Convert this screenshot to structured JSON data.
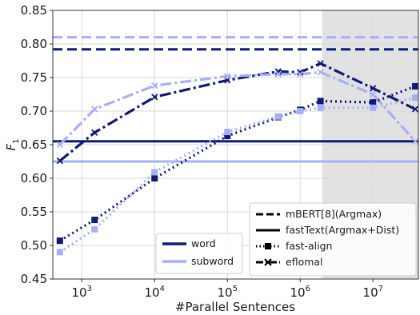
{
  "chart_data": {
    "type": "line",
    "x_scale": "log",
    "xlabel": "#Parallel Sentences",
    "ylabel": "F",
    "ylabel_subscript": "1",
    "xlim": [
      400,
      42000000
    ],
    "ylim": [
      0.45,
      0.85
    ],
    "y_ticks": [
      0.45,
      0.5,
      0.55,
      0.6,
      0.65,
      0.7,
      0.75,
      0.8,
      0.85
    ],
    "y_tick_labels": [
      "0.45",
      "0.50",
      "0.55",
      "0.60",
      "0.65",
      "0.70",
      "0.75",
      "0.80",
      "0.85"
    ],
    "x_ticks": [
      {
        "value": 1000,
        "base": "10",
        "exp": "3"
      },
      {
        "value": 10000,
        "base": "10",
        "exp": "4"
      },
      {
        "value": 100000,
        "base": "10",
        "exp": "5"
      },
      {
        "value": 1000000,
        "base": "10",
        "exp": "6"
      },
      {
        "value": 10000000,
        "base": "10",
        "exp": "7"
      }
    ],
    "grid": true,
    "shaded_region": {
      "x_from": 2000000,
      "x_to": 42000000
    },
    "colors": {
      "word": "#0d1a7a",
      "subword": "#a6b0f5",
      "shade": "#e2e2e2",
      "grid": "#d9d9d9"
    },
    "reference_lines": [
      {
        "method": "mBERT[8](Argmax)",
        "granularity": "word",
        "y": 0.792
      },
      {
        "method": "mBERT[8](Argmax)",
        "granularity": "subword",
        "y": 0.81
      },
      {
        "method": "fastText(Argmax+Dist)",
        "granularity": "word",
        "y": 0.655
      },
      {
        "method": "fastText(Argmax+Dist)",
        "granularity": "subword",
        "y": 0.625
      }
    ],
    "series": [
      {
        "method": "eflomal",
        "granularity": "word",
        "x": [
          500,
          1500,
          10000,
          100000,
          500000,
          1000000,
          1900000,
          10000000,
          38000000
        ],
        "y": [
          0.626,
          0.668,
          0.721,
          0.746,
          0.759,
          0.758,
          0.771,
          0.734,
          0.703
        ]
      },
      {
        "method": "eflomal",
        "granularity": "subword",
        "x": [
          500,
          1500,
          10000,
          100000,
          500000,
          1000000,
          1900000,
          10000000,
          38000000
        ],
        "y": [
          0.65,
          0.703,
          0.738,
          0.752,
          0.755,
          0.755,
          0.758,
          0.725,
          0.655
        ]
      },
      {
        "method": "fast-align",
        "granularity": "word",
        "x": [
          500,
          1500,
          10000,
          100000,
          500000,
          1000000,
          1900000,
          10000000,
          38000000
        ],
        "y": [
          0.507,
          0.538,
          0.6,
          0.663,
          0.691,
          0.702,
          0.715,
          0.713,
          0.737
        ]
      },
      {
        "method": "fast-align",
        "granularity": "subword",
        "x": [
          500,
          1500,
          10000,
          100000,
          500000,
          1000000,
          1900000,
          10000000,
          38000000
        ],
        "y": [
          0.49,
          0.524,
          0.609,
          0.669,
          0.692,
          0.7,
          0.705,
          0.705,
          0.72
        ]
      }
    ],
    "legend_granularity": {
      "placement": "lower-center",
      "entries": [
        "word",
        "subword"
      ]
    },
    "legend_method": {
      "placement": "lower-right",
      "entries": [
        "mBERT[8](Argmax)",
        "fastText(Argmax+Dist)",
        "fast-align",
        "eflomal"
      ]
    }
  }
}
